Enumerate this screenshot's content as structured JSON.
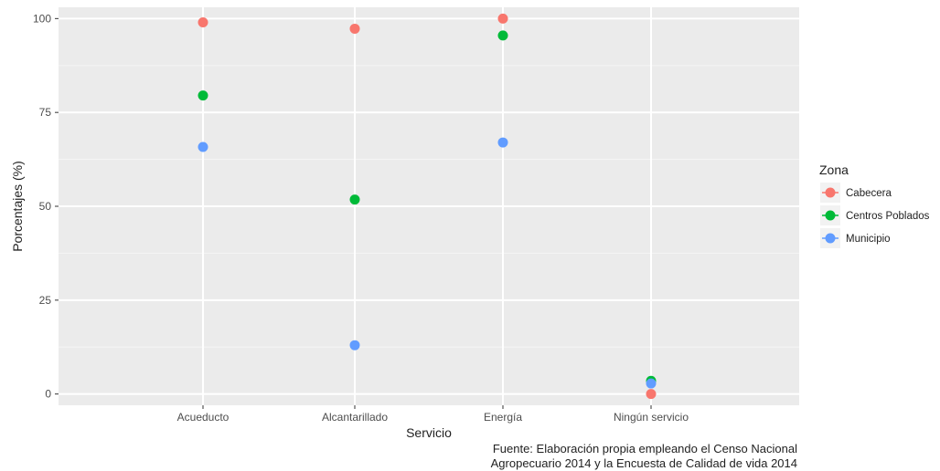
{
  "chart_data": {
    "type": "scatter",
    "xlabel": "Servicio",
    "ylabel": "Porcentajes (%)",
    "categories": [
      "Acueducto",
      "Alcantarillado",
      "Energía",
      "Ningún servicio"
    ],
    "ylim": [
      -3,
      103
    ],
    "yticks": [
      0,
      25,
      50,
      75,
      100
    ],
    "grid": true,
    "legend": {
      "title": "Zona",
      "placement": "right"
    },
    "series": [
      {
        "name": "Cabecera",
        "color": "#F8766D",
        "values": [
          99,
          97.3,
          100,
          0
        ]
      },
      {
        "name": "Centros Poblados",
        "color": "#00BA38",
        "values": [
          79.5,
          51.8,
          95.5,
          3.5
        ]
      },
      {
        "name": "Municipio",
        "color": "#619CFF",
        "values": [
          65.8,
          13,
          67,
          2.8
        ]
      }
    ]
  },
  "source": {
    "line1": "Fuente: Elaboración propia empleando el Censo Nacional",
    "line2": "Agropecuario 2014 y la Encuesta de Calidad de vida 2014"
  }
}
